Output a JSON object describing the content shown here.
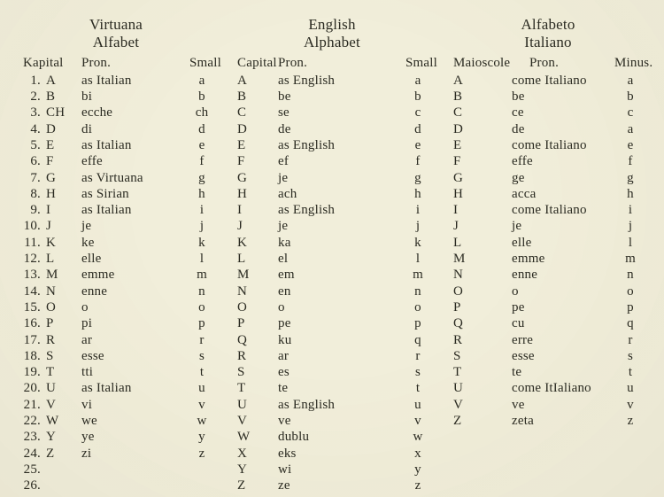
{
  "cols": [
    {
      "title1": "Virtuana",
      "title2": "Alfabet",
      "headers": {
        "cap": "Kapital",
        "pron": "Pron.",
        "sm": "Small"
      },
      "rows": [
        {
          "n": "1.",
          "cap": "A",
          "pron": "as  Italian",
          "sm": "a"
        },
        {
          "n": "2.",
          "cap": "B",
          "pron": "bi",
          "sm": "b"
        },
        {
          "n": "3.",
          "cap": "CH",
          "pron": "ecche",
          "sm": "ch"
        },
        {
          "n": "4.",
          "cap": "D",
          "pron": "di",
          "sm": "d"
        },
        {
          "n": "5.",
          "cap": "E",
          "pron": "as  Italian",
          "sm": "e"
        },
        {
          "n": "6.",
          "cap": "F",
          "pron": "effe",
          "sm": "f"
        },
        {
          "n": "7.",
          "cap": "G",
          "pron": "as  Virtuana",
          "sm": "g"
        },
        {
          "n": "8.",
          "cap": "H",
          "pron": "as  Sirian",
          "sm": "h"
        },
        {
          "n": "9.",
          "cap": "I",
          "pron": "as  Italian",
          "sm": "i"
        },
        {
          "n": "10.",
          "cap": "J",
          "pron": "je",
          "sm": "j"
        },
        {
          "n": "11.",
          "cap": "K",
          "pron": "ke",
          "sm": "k"
        },
        {
          "n": "12.",
          "cap": "L",
          "pron": "elle",
          "sm": "l"
        },
        {
          "n": "13.",
          "cap": "M",
          "pron": "emme",
          "sm": "m"
        },
        {
          "n": "14.",
          "cap": "N",
          "pron": "enne",
          "sm": "n"
        },
        {
          "n": "15.",
          "cap": "O",
          "pron": "o",
          "sm": "o"
        },
        {
          "n": "16.",
          "cap": "P",
          "pron": "pi",
          "sm": "p"
        },
        {
          "n": "17.",
          "cap": "R",
          "pron": "ar",
          "sm": "r"
        },
        {
          "n": "18.",
          "cap": "S",
          "pron": "esse",
          "sm": "s"
        },
        {
          "n": "19.",
          "cap": "T",
          "pron": "tti",
          "sm": "t"
        },
        {
          "n": "20.",
          "cap": "U",
          "pron": "as  Italian",
          "sm": "u"
        },
        {
          "n": "21.",
          "cap": "V",
          "pron": "vi",
          "sm": "v"
        },
        {
          "n": "22.",
          "cap": "W",
          "pron": "we",
          "sm": "w"
        },
        {
          "n": "23.",
          "cap": "Y",
          "pron": "ye",
          "sm": "y"
        },
        {
          "n": "24.",
          "cap": "Z",
          "pron": "zi",
          "sm": "z"
        },
        {
          "n": "25.",
          "cap": "",
          "pron": "",
          "sm": ""
        },
        {
          "n": "26.",
          "cap": "",
          "pron": "",
          "sm": ""
        }
      ]
    },
    {
      "title1": "English",
      "title2": "Alphabet",
      "headers": {
        "cap": "Capital",
        "pron": "Pron.",
        "sm": "Small"
      },
      "rows": [
        {
          "cap": "A",
          "pron": "as  English",
          "sm": "a"
        },
        {
          "cap": "B",
          "pron": "be",
          "sm": "b"
        },
        {
          "cap": "C",
          "pron": "se",
          "sm": "c"
        },
        {
          "cap": "D",
          "pron": "de",
          "sm": "d"
        },
        {
          "cap": "E",
          "pron": "as  English",
          "sm": "e"
        },
        {
          "cap": "F",
          "pron": "ef",
          "sm": "f"
        },
        {
          "cap": "G",
          "pron": "je",
          "sm": "g"
        },
        {
          "cap": "H",
          "pron": "ach",
          "sm": "h"
        },
        {
          "cap": "I",
          "pron": "as  English",
          "sm": "i"
        },
        {
          "cap": "J",
          "pron": "je",
          "sm": "j"
        },
        {
          "cap": "K",
          "pron": "ka",
          "sm": "k"
        },
        {
          "cap": "L",
          "pron": "el",
          "sm": "l"
        },
        {
          "cap": "M",
          "pron": "em",
          "sm": "m"
        },
        {
          "cap": "N",
          "pron": "en",
          "sm": "n"
        },
        {
          "cap": "O",
          "pron": "o",
          "sm": "o"
        },
        {
          "cap": "P",
          "pron": "pe",
          "sm": "p"
        },
        {
          "cap": "Q",
          "pron": "ku",
          "sm": "q"
        },
        {
          "cap": "R",
          "pron": "ar",
          "sm": "r"
        },
        {
          "cap": "S",
          "pron": "es",
          "sm": "s"
        },
        {
          "cap": "T",
          "pron": "te",
          "sm": "t"
        },
        {
          "cap": "U",
          "pron": "as  English",
          "sm": "u"
        },
        {
          "cap": "V",
          "pron": "ve",
          "sm": "v"
        },
        {
          "cap": "W",
          "pron": "dublu",
          "sm": "w"
        },
        {
          "cap": "X",
          "pron": "eks",
          "sm": "x"
        },
        {
          "cap": "Y",
          "pron": "wi",
          "sm": "y"
        },
        {
          "cap": "Z",
          "pron": "ze",
          "sm": "z"
        }
      ]
    },
    {
      "title1": "Alfabeto",
      "title2": "Italiano",
      "headers": {
        "cap": "Maioscole",
        "pron": "Pron.",
        "sm": "Minus."
      },
      "rows": [
        {
          "cap": "A",
          "pron": "come Italiano",
          "sm": "a"
        },
        {
          "cap": "B",
          "pron": "be",
          "sm": "b"
        },
        {
          "cap": "C",
          "pron": "ce",
          "sm": "c"
        },
        {
          "cap": "D",
          "pron": "de",
          "sm": "a"
        },
        {
          "cap": "E",
          "pron": "come Italiano",
          "sm": "e"
        },
        {
          "cap": "F",
          "pron": "effe",
          "sm": "f"
        },
        {
          "cap": "G",
          "pron": "ge",
          "sm": "g"
        },
        {
          "cap": "H",
          "pron": "acca",
          "sm": "h"
        },
        {
          "cap": "I",
          "pron": "come Italiano",
          "sm": "i"
        },
        {
          "cap": "J",
          "pron": "je",
          "sm": "j"
        },
        {
          "cap": "L",
          "pron": "elle",
          "sm": "l"
        },
        {
          "cap": "M",
          "pron": "emme",
          "sm": "m"
        },
        {
          "cap": "N",
          "pron": "enne",
          "sm": "n"
        },
        {
          "cap": "O",
          "pron": "o",
          "sm": "o"
        },
        {
          "cap": "P",
          "pron": "pe",
          "sm": "p"
        },
        {
          "cap": "Q",
          "pron": "cu",
          "sm": "q"
        },
        {
          "cap": "R",
          "pron": "erre",
          "sm": "r"
        },
        {
          "cap": "S",
          "pron": "esse",
          "sm": "s"
        },
        {
          "cap": "T",
          "pron": "te",
          "sm": "t"
        },
        {
          "cap": "U",
          "pron": "come ItIaliano",
          "sm": "u"
        },
        {
          "cap": "V",
          "pron": "ve",
          "sm": "v"
        },
        {
          "cap": "Z",
          "pron": "zeta",
          "sm": "z"
        }
      ]
    }
  ],
  "style": {
    "background_color": "#f1eeda",
    "text_color": "#2b2b22",
    "font_family": "Times New Roman",
    "title_fontsize": 17,
    "body_fontsize": 15,
    "line_height": 1.22,
    "layout": "three-columns"
  }
}
